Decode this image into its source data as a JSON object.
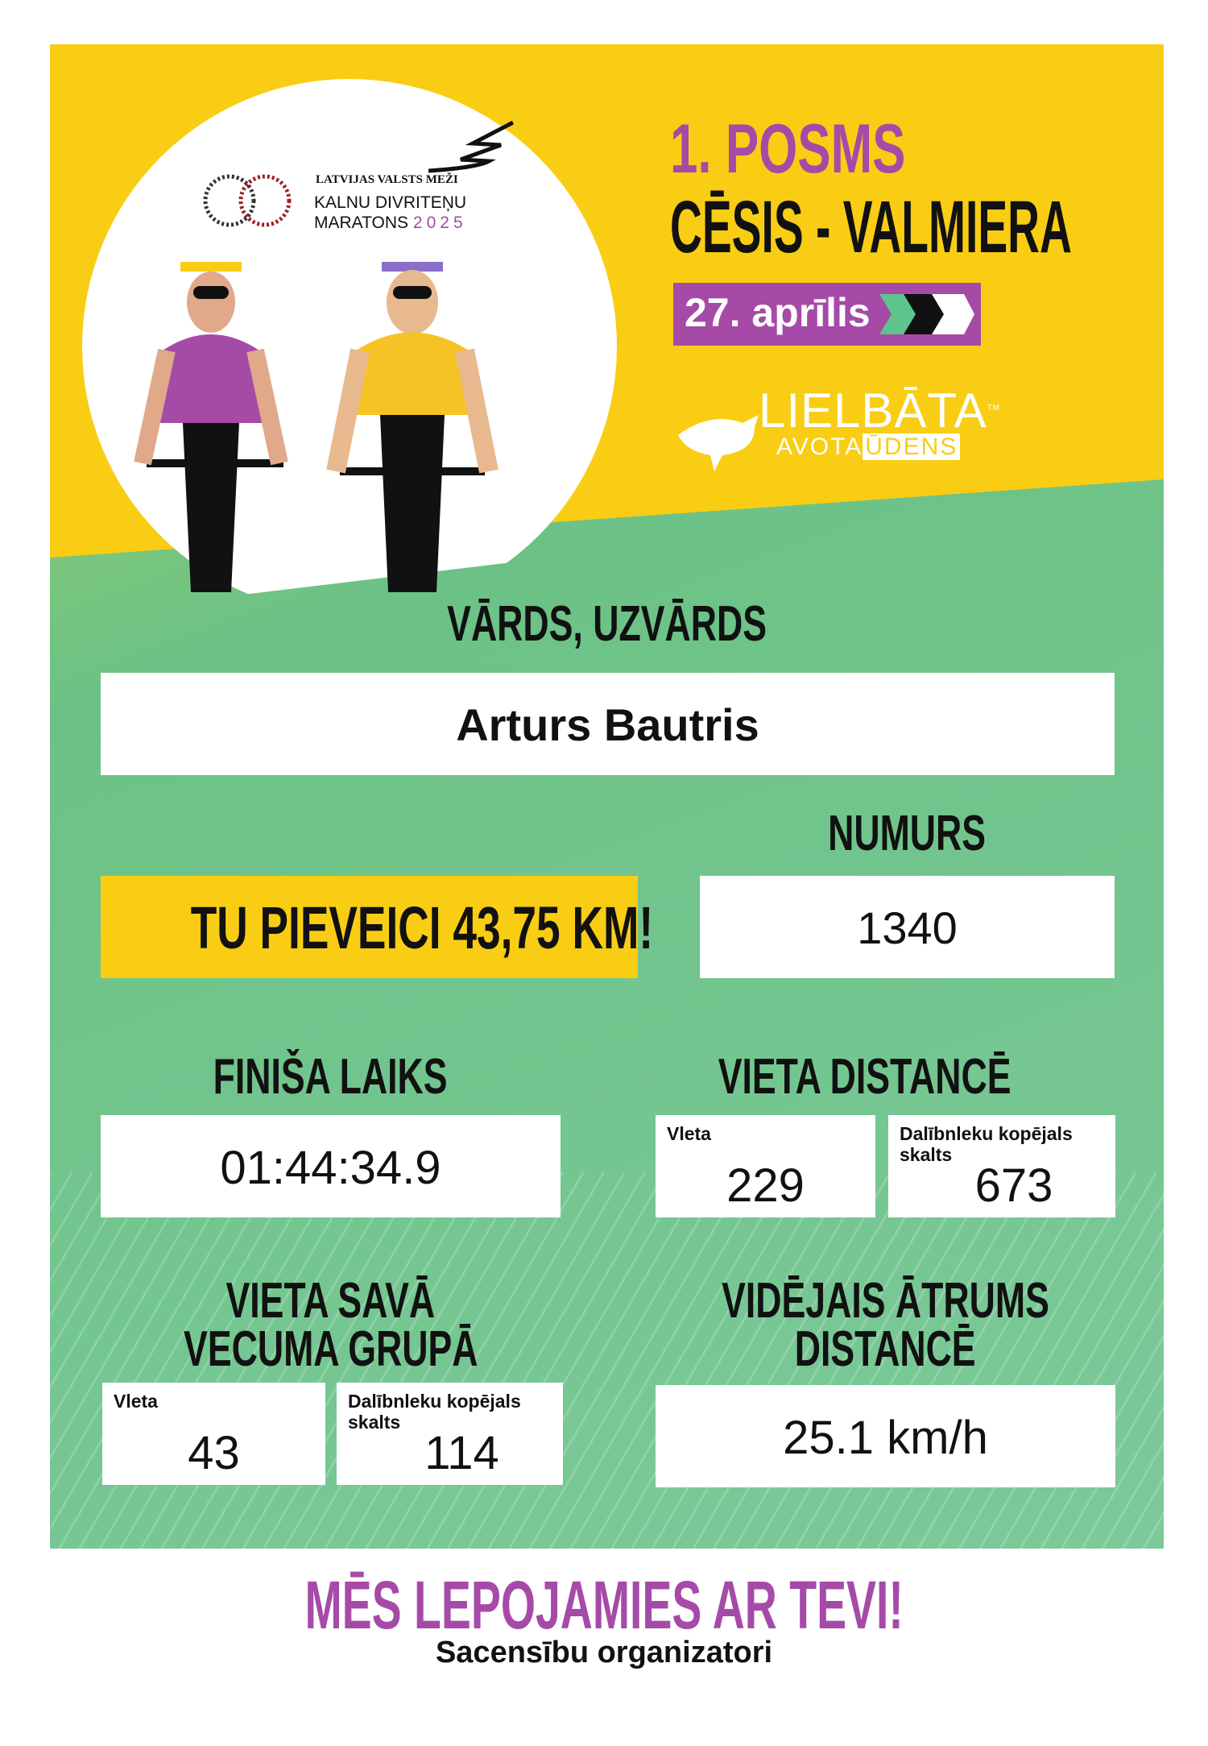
{
  "header": {
    "sponsor_logo": {
      "line1": "LATVIJAS VALSTS MEŽI",
      "line2": "KALNU DIVRITEŅU",
      "line3": "MARATONS",
      "year": "2025",
      "ring_text": "VIENMĒR KUSTĪBĀ"
    },
    "stage": "1. POSMS",
    "route": "CĒSIS - VALMIERA",
    "date": "27. aprīlis",
    "partner_logo": {
      "name": "LIELBĀTA",
      "tm": "TM",
      "sub1": "AVOTA",
      "sub2": "ŪDENS"
    }
  },
  "name_section": {
    "label": "VĀRDS, UZVĀRDS",
    "value": "Arturs Bautris"
  },
  "distance_banner": "TU PIEVEICI 43,75 KM!",
  "number_section": {
    "label": "NUMURS",
    "value": "1340"
  },
  "finish_section": {
    "label": "FINIŠA LAIKS",
    "value": "01:44:34.9"
  },
  "distance_place": {
    "label": "VIETA DISTANCĒ",
    "place_label": "Vleta",
    "place_value": "229",
    "total_label": "Dalībnleku kopējals skalts",
    "total_value": "673"
  },
  "age_place": {
    "label_line1": "VIETA SAVĀ",
    "label_line2": "VECUMA GRUPĀ",
    "place_label": "Vleta",
    "place_value": "43",
    "total_label": "Dalībnleku kopējals skalts",
    "total_value": "114"
  },
  "speed_section": {
    "label_line1": "VIDĒJAIS ĀTRUMS",
    "label_line2": "DISTANCĒ",
    "value": "25.1 km/h"
  },
  "footer": {
    "title": "MĒS LEPOJAMIES AR TEVI!",
    "subtitle": "Sacensību organizatori"
  },
  "colors": {
    "yellow": "#f9cd14",
    "green": "#6cc286",
    "purple": "#a64aa8",
    "black": "#111111"
  }
}
